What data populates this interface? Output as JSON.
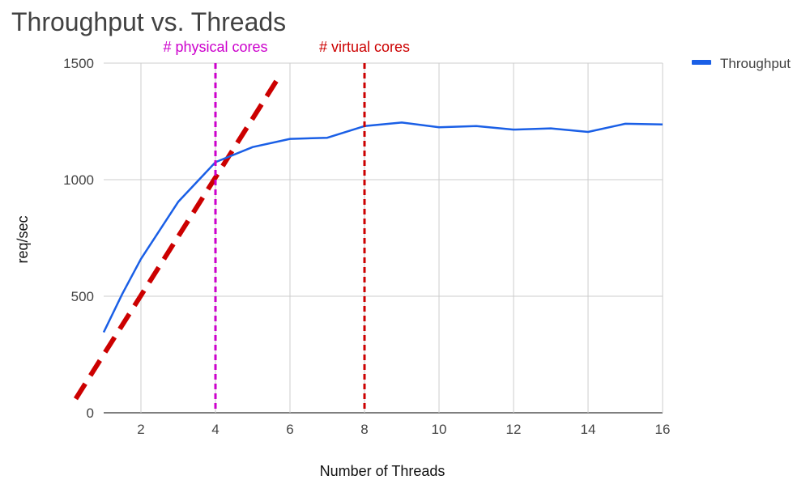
{
  "chart_data": {
    "type": "line",
    "title": "Throughput vs. Threads",
    "xlabel": "Number of Threads",
    "ylabel": "req/sec",
    "xlim": [
      1,
      16
    ],
    "ylim": [
      0,
      1500
    ],
    "x_ticks": [
      2,
      4,
      6,
      8,
      10,
      12,
      14,
      16
    ],
    "y_ticks": [
      0,
      500,
      1000,
      1500
    ],
    "grid": true,
    "legend_position": "top-right",
    "series": [
      {
        "name": "Throughput",
        "color": "#1a5fe6",
        "x": [
          1,
          1.5,
          2,
          3,
          4,
          5,
          6,
          7,
          8,
          9,
          10,
          11,
          12,
          13,
          14,
          15,
          16
        ],
        "y": [
          345,
          510,
          660,
          905,
          1075,
          1140,
          1175,
          1180,
          1230,
          1245,
          1225,
          1230,
          1215,
          1220,
          1205,
          1240,
          1237
        ]
      }
    ],
    "annotations": {
      "physical_cores": {
        "label": "# physical cores",
        "x": 4,
        "color": "#cc00cc"
      },
      "virtual_cores": {
        "label": "# virtual cores",
        "x": 8,
        "color": "#cc0000"
      },
      "linear_trend": {
        "color": "#cc0000",
        "x": [
          0.25,
          5.7
        ],
        "y": [
          60,
          1440
        ]
      }
    }
  }
}
